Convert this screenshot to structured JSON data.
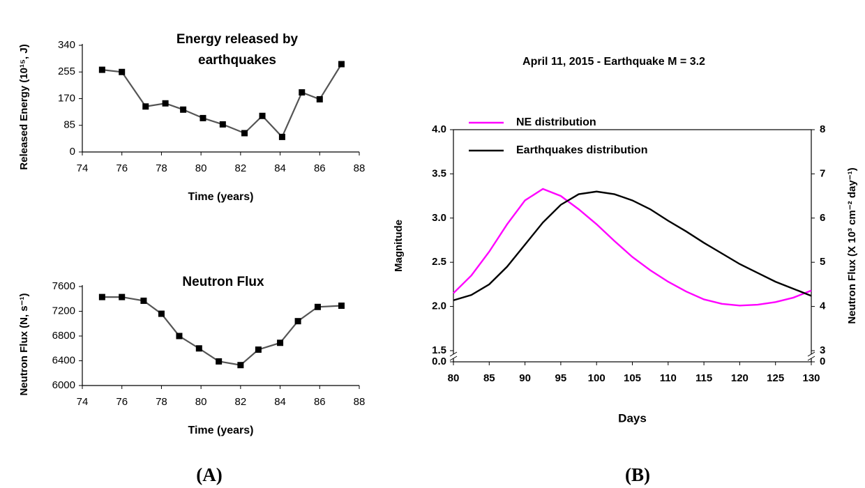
{
  "chart_data": [
    {
      "type": "line",
      "title": "Energy released by earthquakes",
      "xlabel": "Time (years)",
      "ylabel": "Released Energy (10¹⁵, J)",
      "x": [
        75,
        76,
        77.2,
        78.2,
        79.1,
        80.1,
        81.1,
        82.2,
        83.1,
        84.1,
        85.1,
        86,
        87.1
      ],
      "values": [
        262,
        255,
        145,
        155,
        135,
        108,
        88,
        60,
        115,
        48,
        190,
        168,
        280
      ],
      "color": "#555555",
      "marker": "square",
      "marker_color": "#000000",
      "xlim": [
        74,
        88
      ],
      "xticks": [
        74,
        76,
        78,
        80,
        82,
        84,
        86,
        88
      ],
      "ylim": [
        0,
        340
      ],
      "yticks": [
        0,
        85,
        170,
        255,
        340
      ]
    },
    {
      "type": "line",
      "title": "Neutron Flux",
      "xlabel": "Time (years)",
      "ylabel": "Neutron Flux (N, s⁻¹)",
      "x": [
        75,
        76,
        77.1,
        78,
        78.9,
        79.9,
        80.9,
        82,
        82.9,
        84,
        84.9,
        85.9,
        87.1
      ],
      "values": [
        7430,
        7430,
        7370,
        7160,
        6800,
        6600,
        6390,
        6330,
        6580,
        6690,
        7040,
        7270,
        7290
      ],
      "color": "#555555",
      "marker": "square",
      "marker_color": "#000000",
      "xlim": [
        74,
        88
      ],
      "xticks": [
        74,
        76,
        78,
        80,
        82,
        84,
        86,
        88
      ],
      "ylim": [
        6000,
        7600
      ],
      "yticks": [
        6000,
        6400,
        6800,
        7200,
        7600
      ]
    },
    {
      "type": "line",
      "title": "April 11, 2015 - Earthquake M = 3.2",
      "xlabel": "Days",
      "ylabel": "Magnitude",
      "y2label": "Neutron Flux (X 10³ cm⁻² day⁻¹)",
      "x": [
        80,
        82.5,
        85,
        87.5,
        90,
        92.5,
        95,
        97.5,
        100,
        102.5,
        105,
        107.5,
        110,
        112.5,
        115,
        117.5,
        120,
        122.5,
        125,
        127.5,
        130
      ],
      "series": [
        {
          "name": "NE distribution",
          "color": "#ff00ff",
          "axis": "y2",
          "values": [
            4.3,
            4.7,
            5.24,
            5.86,
            6.4,
            6.66,
            6.5,
            6.2,
            5.86,
            5.48,
            5.12,
            4.82,
            4.56,
            4.34,
            4.16,
            4.06,
            4.02,
            4.04,
            4.1,
            4.2,
            4.36
          ]
        },
        {
          "name": "Earthquakes distribution",
          "color": "#000000",
          "values": [
            2.07,
            2.13,
            2.25,
            2.45,
            2.7,
            2.95,
            3.15,
            3.27,
            3.3,
            3.27,
            3.2,
            3.1,
            2.97,
            2.85,
            2.72,
            2.6,
            2.48,
            2.38,
            2.28,
            2.2,
            2.12
          ]
        }
      ],
      "legend": "upper left",
      "xlim": [
        80,
        130
      ],
      "xticks": [
        80,
        85,
        90,
        95,
        100,
        105,
        110,
        115,
        120,
        125,
        130
      ],
      "ylim": [
        0,
        4
      ],
      "yticks": [
        {
          "value": 0,
          "label": "0.0"
        },
        1.5,
        {
          "value": 2,
          "label": "2.0"
        },
        2.5,
        {
          "value": 3,
          "label": "3.0"
        },
        3.5,
        {
          "value": 4,
          "label": "4.0"
        }
      ],
      "y2lim": [
        0,
        8
      ],
      "y2ticks": [
        0,
        3,
        4,
        5,
        6,
        7,
        8
      ],
      "axis_break": {
        "y": [
          0,
          1.5
        ],
        "y2": [
          0,
          3
        ]
      }
    }
  ],
  "panel_labels": [
    "(A)",
    "(B)"
  ]
}
